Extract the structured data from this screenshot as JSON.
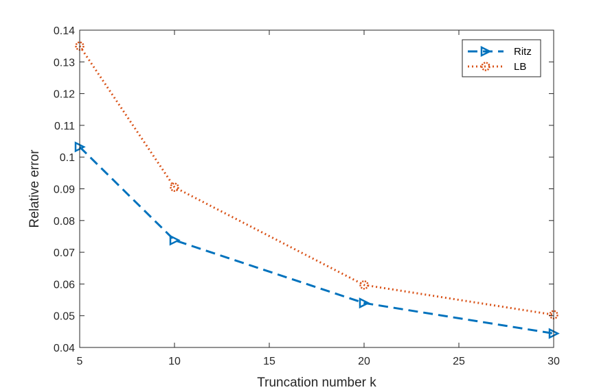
{
  "chart_data": {
    "type": "line",
    "title": "",
    "xlabel": "Truncation number k",
    "ylabel": "Relative error",
    "x": [
      5,
      10,
      20,
      30
    ],
    "xlim": [
      5,
      30
    ],
    "ylim": [
      0.04,
      0.14
    ],
    "xticks": [
      5,
      10,
      15,
      20,
      25,
      30
    ],
    "yticks": [
      0.04,
      0.05,
      0.06,
      0.07,
      0.08,
      0.09,
      0.1,
      0.11,
      0.12,
      0.13,
      0.14
    ],
    "xtick_labels": [
      "5",
      "10",
      "15",
      "20",
      "25",
      "30"
    ],
    "ytick_labels": [
      "0.04",
      "0.05",
      "0.06",
      "0.07",
      "0.08",
      "0.09",
      "0.1",
      "0.11",
      "0.12",
      "0.13",
      "0.14"
    ],
    "grid": false,
    "legend_position": "top-right",
    "series": [
      {
        "name": "Ritz",
        "values": [
          0.1032,
          0.0738,
          0.054,
          0.0444
        ],
        "color": "#0072BD",
        "line_style": "dashed",
        "marker": "triangle-right"
      },
      {
        "name": "LB",
        "values": [
          0.135,
          0.0905,
          0.0597,
          0.0503
        ],
        "color": "#D95319",
        "line_style": "dotted",
        "marker": "circle"
      }
    ]
  }
}
